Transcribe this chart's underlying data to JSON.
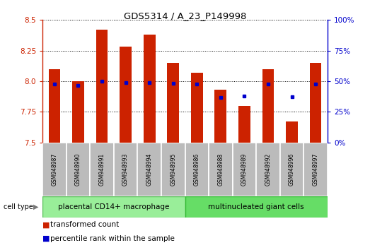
{
  "title": "GDS5314 / A_23_P149998",
  "samples": [
    "GSM948987",
    "GSM948990",
    "GSM948991",
    "GSM948993",
    "GSM948994",
    "GSM948995",
    "GSM948986",
    "GSM948988",
    "GSM948989",
    "GSM948992",
    "GSM948996",
    "GSM948997"
  ],
  "red_values": [
    8.1,
    8.0,
    8.42,
    8.28,
    8.38,
    8.15,
    8.07,
    7.93,
    7.8,
    8.1,
    7.67,
    8.15
  ],
  "blue_values": [
    47.5,
    46.5,
    50.0,
    49.0,
    49.0,
    48.5,
    48.0,
    37.0,
    38.0,
    47.5,
    37.5,
    47.5
  ],
  "ymin": 7.5,
  "ymax": 8.5,
  "y2min": 0,
  "y2max": 100,
  "group1_label": "placental CD14+ macrophage",
  "group2_label": "multinucleated giant cells",
  "group1_count": 6,
  "group2_count": 6,
  "cell_type_label": "cell type",
  "legend_red": "transformed count",
  "legend_blue": "percentile rank within the sample",
  "bar_color": "#cc2200",
  "dot_color": "#0000cc",
  "group1_bg": "#99ee99",
  "group2_bg": "#66dd66",
  "tick_label_bg": "#bbbbbb",
  "yticks_left": [
    7.5,
    7.75,
    8.0,
    8.25,
    8.5
  ],
  "yticks_right": [
    0,
    25,
    50,
    75,
    100
  ],
  "bar_width": 0.5
}
